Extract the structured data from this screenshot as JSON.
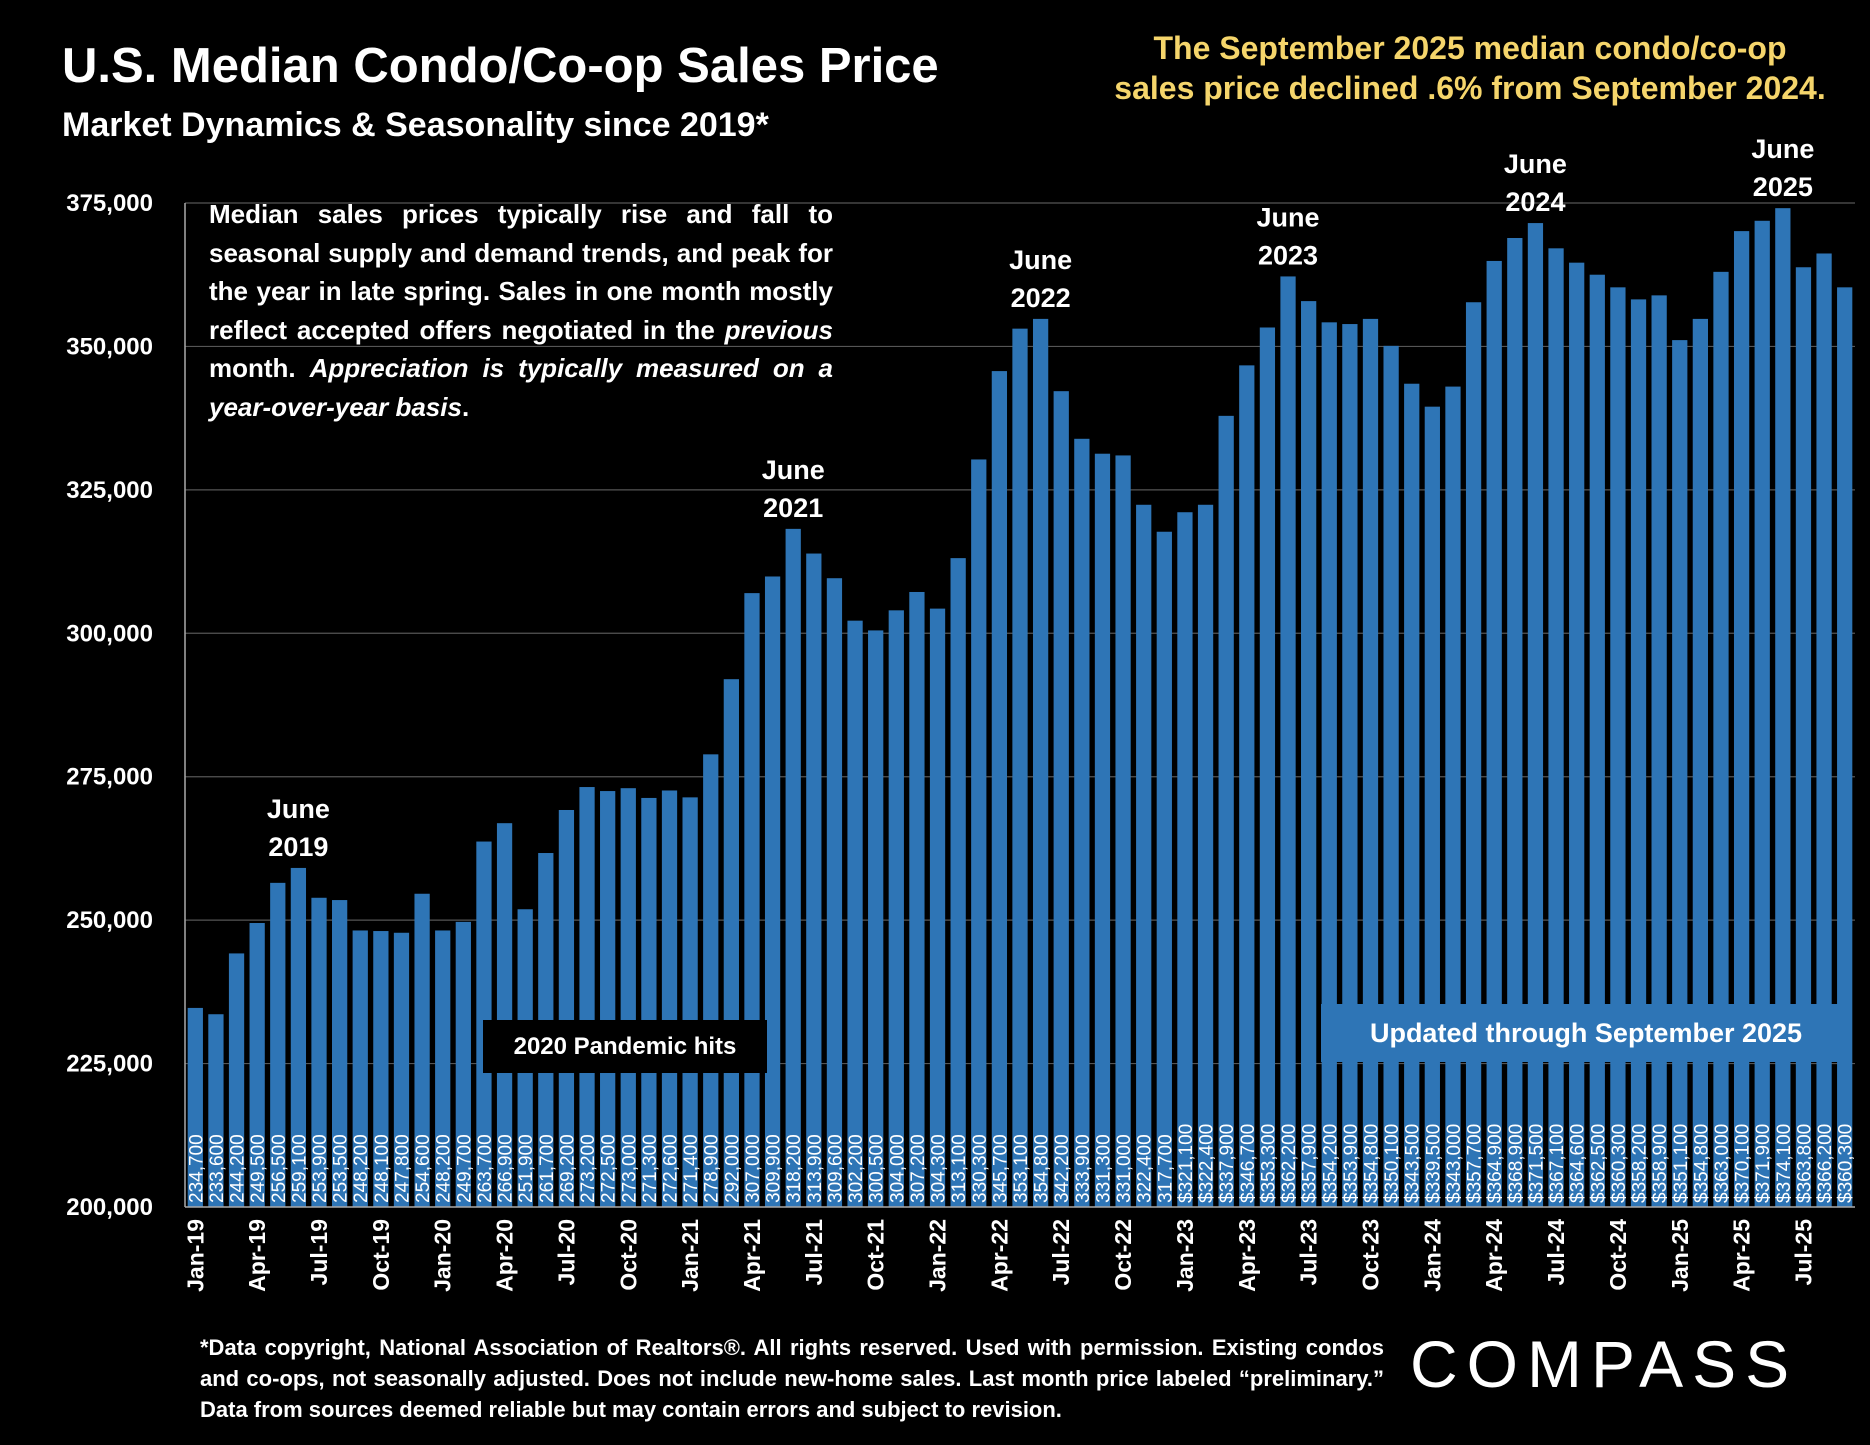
{
  "header": {
    "title": "U.S. Median Condo/Co-op Sales Price",
    "subtitle": "Market Dynamics & Seasonality since 2019*",
    "headline_line1": "The September 2025 median condo/co-op",
    "headline_line2": "sales price declined .6% from September 2024."
  },
  "note_html_parts": {
    "p1": "Median sales prices typically rise and fall to seasonal supply and demand trends, and peak for the year in late spring. Sales in one month mostly reflect accepted offers negotiated in the ",
    "p2": "previous",
    "p3": " month. ",
    "p4": "Appreciation is typically measured on a year-over-year basis",
    "p5": "."
  },
  "annotations": {
    "pandemic": "2020 Pandemic hits",
    "updated": "Updated through September 2025"
  },
  "footnote": "*Data copyright, National Association of Realtors®. All rights reserved. Used with permission. Existing condos and co-ops, not seasonally adjusted. Does not include new-home sales. Last month price labeled “preliminary.” Data from sources deemed reliable but may contain errors and subject to revision.",
  "logo": "COMPASS",
  "colors": {
    "bar": "#2e75b6",
    "background": "#000000",
    "headline": "#f5d56b",
    "text": "#ffffff"
  },
  "chart_data": {
    "type": "bar",
    "ylim": [
      200000,
      375000
    ],
    "yticks": [
      "200,000",
      "225,000",
      "250,000",
      "275,000",
      "300,000",
      "325,000",
      "350,000",
      "375,000"
    ],
    "ytick_values": [
      200000,
      225000,
      250000,
      275000,
      300000,
      325000,
      350000,
      375000
    ],
    "grid": true,
    "categories": [
      "Jan-19",
      "Feb-19",
      "Mar-19",
      "Apr-19",
      "May-19",
      "Jun-19",
      "Jul-19",
      "Aug-19",
      "Sep-19",
      "Oct-19",
      "Nov-19",
      "Dec-19",
      "Jan-20",
      "Feb-20",
      "Mar-20",
      "Apr-20",
      "May-20",
      "Jun-20",
      "Jul-20",
      "Aug-20",
      "Sep-20",
      "Oct-20",
      "Nov-20",
      "Dec-20",
      "Jan-21",
      "Feb-21",
      "Mar-21",
      "Apr-21",
      "May-21",
      "Jun-21",
      "Jul-21",
      "Aug-21",
      "Sep-21",
      "Oct-21",
      "Nov-21",
      "Dec-21",
      "Jan-22",
      "Feb-22",
      "Mar-22",
      "Apr-22",
      "May-22",
      "Jun-22",
      "Jul-22",
      "Aug-22",
      "Sep-22",
      "Oct-22",
      "Nov-22",
      "Dec-22",
      "Jan-23",
      "Feb-23",
      "Mar-23",
      "Apr-23",
      "May-23",
      "Jun-23",
      "Jul-23",
      "Aug-23",
      "Sep-23",
      "Oct-23",
      "Nov-23",
      "Dec-23",
      "Jan-24",
      "Feb-24",
      "Mar-24",
      "Apr-24",
      "May-24",
      "Jun-24",
      "Jul-24",
      "Aug-24",
      "Sep-24",
      "Oct-24",
      "Nov-24",
      "Dec-24",
      "Jan-25",
      "Feb-25",
      "Mar-25",
      "Apr-25",
      "May-25",
      "Jun-25",
      "Jul-25",
      "Aug-25",
      "Sep-25"
    ],
    "xtick_labels": [
      "Jan-19",
      "Apr-19",
      "Jul-19",
      "Oct-19",
      "Jan-20",
      "Apr-20",
      "Jul-20",
      "Oct-20",
      "Jan-21",
      "Apr-21",
      "Jul-21",
      "Oct-21",
      "Jan-22",
      "Apr-22",
      "Jul-22",
      "Oct-22",
      "Jan-23",
      "Apr-23",
      "Jul-23",
      "Oct-23",
      "Jan-24",
      "Apr-24",
      "Jul-24",
      "Oct-24",
      "Jan-25",
      "Apr-25",
      "Jul-25"
    ],
    "values": [
      234700,
      233600,
      244200,
      249500,
      256500,
      259100,
      253900,
      253500,
      248200,
      248100,
      247800,
      254600,
      248200,
      249700,
      263700,
      266900,
      251900,
      261700,
      269200,
      273200,
      272500,
      273000,
      271300,
      272600,
      271400,
      278900,
      292000,
      307000,
      309900,
      318200,
      313900,
      309600,
      302200,
      300500,
      304000,
      307200,
      304300,
      313100,
      330300,
      345700,
      353100,
      354800,
      342200,
      333900,
      331300,
      331000,
      322400,
      317700,
      321100,
      322400,
      337900,
      346700,
      353300,
      362200,
      357900,
      354200,
      353900,
      354800,
      350100,
      343500,
      339500,
      343000,
      357700,
      364900,
      368900,
      371500,
      367100,
      364600,
      362500,
      360300,
      358200,
      358900,
      351100,
      354800,
      363000,
      370100,
      371900,
      374100,
      363800,
      366200,
      360300
    ],
    "data_labels": [
      "234,700",
      "233,600",
      "244,200",
      "249,500",
      "256,500",
      "259,100",
      "253,900",
      "253,500",
      "248,200",
      "248,100",
      "247,800",
      "254,600",
      "248,200",
      "249,700",
      "263,700",
      "266,900",
      "251,900",
      "261,700",
      "269,200",
      "273,200",
      "272,500",
      "273,000",
      "271,300",
      "272,600",
      "271,400",
      "278,900",
      "292,000",
      "307,000",
      "309,900",
      "318,200",
      "313,900",
      "309,600",
      "302,200",
      "300,500",
      "304,000",
      "307,200",
      "304,300",
      "313,100",
      "330,300",
      "345,700",
      "353,100",
      "354,800",
      "342,200",
      "333,900",
      "331,300",
      "331,000",
      "322,400",
      "317,700",
      "$321,100",
      "$322,400",
      "$337,900",
      "$346,700",
      "$353,300",
      "$362,200",
      "$357,900",
      "$354,200",
      "$353,900",
      "$354,800",
      "$350,100",
      "$343,500",
      "$339,500",
      "$343,000",
      "$357,700",
      "$364,900",
      "$368,900",
      "$371,500",
      "$367,100",
      "$364,600",
      "$362,500",
      "$360,300",
      "$358,200",
      "$358,900",
      "$351,100",
      "$354,800",
      "$363,000",
      "$370,100",
      "$371,900",
      "$374,100",
      "$363,800",
      "$366,200",
      "$360,300"
    ],
    "peak_labels": [
      {
        "month": "Jun-19",
        "line1": "June",
        "line2": "2019"
      },
      {
        "month": "Jun-21",
        "line1": "June",
        "line2": "2021"
      },
      {
        "month": "Jun-22",
        "line1": "June",
        "line2": "2022"
      },
      {
        "month": "Jun-23",
        "line1": "June",
        "line2": "2023"
      },
      {
        "month": "Jun-24",
        "line1": "June",
        "line2": "2024"
      },
      {
        "month": "Jun-25",
        "line1": "June",
        "line2": "2025"
      }
    ]
  }
}
